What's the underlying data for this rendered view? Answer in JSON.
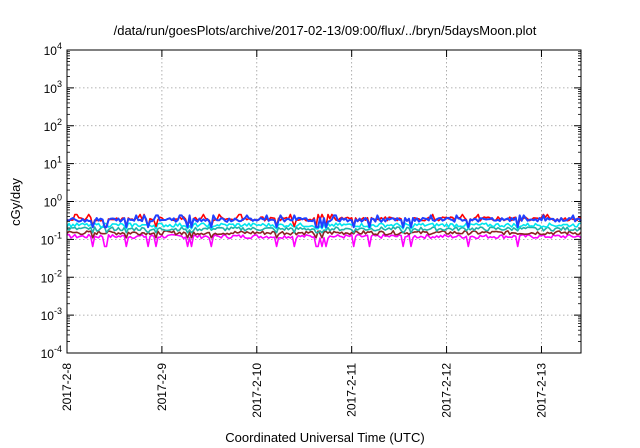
{
  "chart_data": {
    "type": "line",
    "title": "/data/run/goesPlots/archive/2017-02-13/09:00/flux/../bryn/5daysMoon.plot",
    "xlabel": "Coordinated Universal Time (UTC)",
    "ylabel": "cGy/day",
    "y_scale": "log",
    "ylim_exponents": [
      -4,
      4
    ],
    "y_ticks": [
      {
        "base": "10",
        "exp": "4"
      },
      {
        "base": "10",
        "exp": "3"
      },
      {
        "base": "10",
        "exp": "2"
      },
      {
        "base": "10",
        "exp": "1"
      },
      {
        "base": "10",
        "exp": "0"
      },
      {
        "base": "10",
        "exp": "-1"
      },
      {
        "base": "10",
        "exp": "-2"
      },
      {
        "base": "10",
        "exp": "-3"
      },
      {
        "base": "10",
        "exp": "-4"
      }
    ],
    "x_range_days": [
      "2017-02-08",
      "2017-02-13 10:00"
    ],
    "x_ticks": [
      "2017-2-8",
      "2017-2-9",
      "2017-2-10",
      "2017-2-11",
      "2017-2-12",
      "2017-2-13"
    ],
    "grid": true,
    "legend": "none",
    "series": [
      {
        "color": "#ff00ff",
        "level": 0.12,
        "spike_min": 0.065
      },
      {
        "color": "#8b2323",
        "level": 0.15,
        "spike_min": 0.11
      },
      {
        "color": "#20b2aa",
        "level": 0.19,
        "spike_min": 0.15
      },
      {
        "color": "#00e5ee",
        "level": 0.24,
        "spike_min": 0.19
      },
      {
        "color": "#ff0000",
        "level": 0.35,
        "spike_min": 0.22
      },
      {
        "color": "#2040ff",
        "level": 0.33,
        "spike_min": 0.21
      }
    ]
  }
}
